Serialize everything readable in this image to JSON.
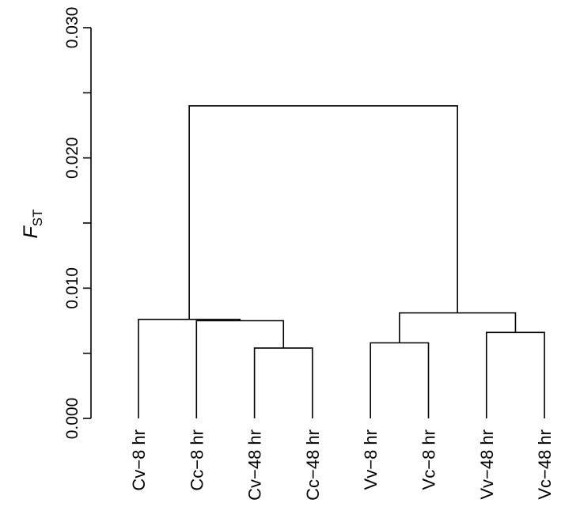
{
  "chart_data": {
    "type": "dendrogram",
    "ylabel": {
      "main": "F",
      "subscript": "ST"
    },
    "ylim": [
      0,
      0.03
    ],
    "yticks": [
      0,
      0.005,
      0.01,
      0.015,
      0.02,
      0.025,
      0.03
    ],
    "ytick_labels": [
      "0.000",
      "",
      "0.010",
      "",
      "0.020",
      "",
      "0.030"
    ],
    "leaves": [
      "Cv−8 hr",
      "Cc−8 hr",
      "Cv−48 hr",
      "Cc−48 hr",
      "Vv−8 hr",
      "Vc−8 hr",
      "Vv−48 hr",
      "Vc−48 hr"
    ],
    "merges": [
      {
        "left": "leaf:2",
        "right": "leaf:3",
        "height": 0.0054
      },
      {
        "left": "leaf:1",
        "right": "node:0",
        "height": 0.0075
      },
      {
        "left": "leaf:0",
        "right": "node:1",
        "height": 0.0076
      },
      {
        "left": "leaf:4",
        "right": "leaf:5",
        "height": 0.0058
      },
      {
        "left": "leaf:6",
        "right": "leaf:7",
        "height": 0.0066
      },
      {
        "left": "node:3",
        "right": "node:4",
        "height": 0.0081
      },
      {
        "left": "node:2",
        "right": "node:5",
        "height": 0.024
      }
    ],
    "grid": false,
    "legend": "none"
  }
}
